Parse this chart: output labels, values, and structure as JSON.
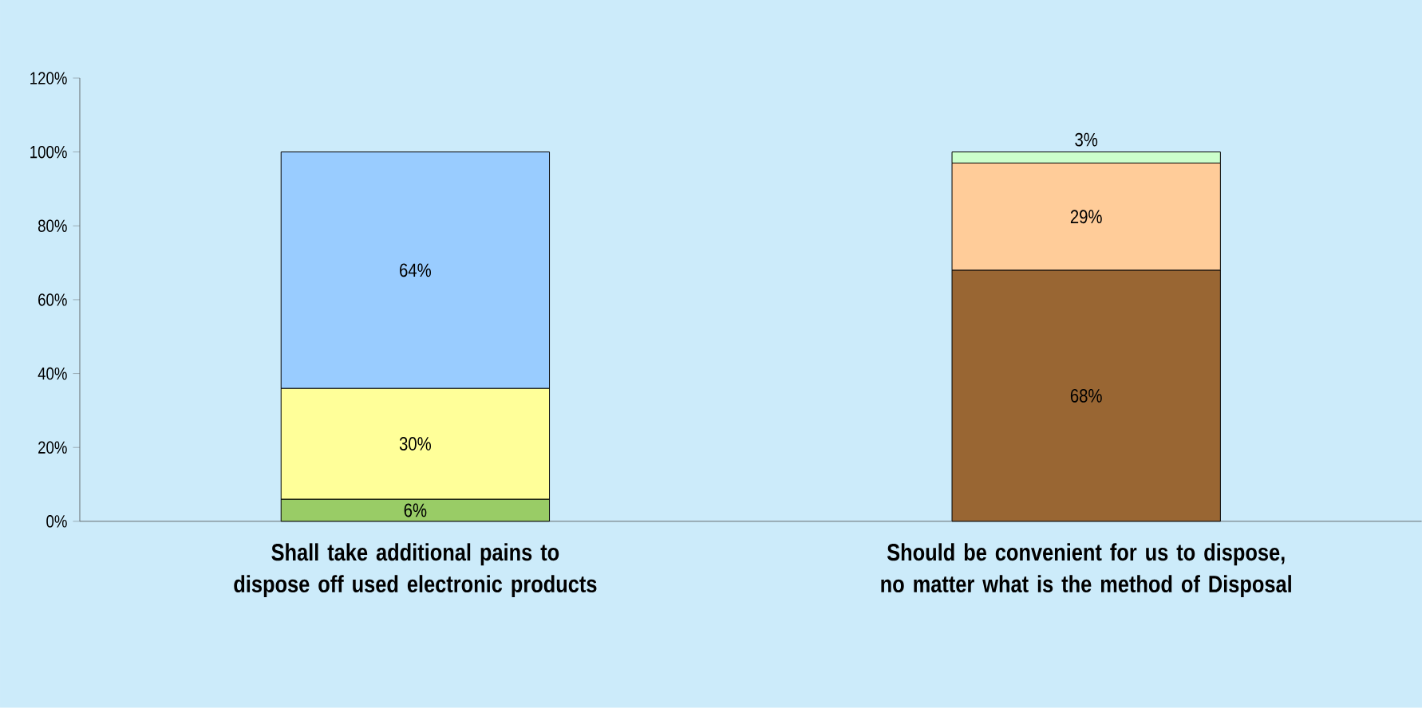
{
  "chart_data": {
    "type": "bar",
    "stacked": true,
    "categories": [
      "Shall take additional pains to dispose off used electronic products",
      "Should be convenient for us to dispose, no matter what is the method of Disposal"
    ],
    "series": [
      {
        "colors": [
          "#99cc66",
          "#996633"
        ],
        "values": [
          6,
          68
        ],
        "value_labels": [
          "6%",
          "68%"
        ]
      },
      {
        "colors": [
          "#ffff99",
          "#ffcc99"
        ],
        "values": [
          30,
          29
        ],
        "value_labels": [
          "30%",
          "29%"
        ]
      },
      {
        "colors": [
          "#99ccff",
          "#ccffcc"
        ],
        "values": [
          64,
          3
        ],
        "value_labels": [
          "64%",
          "3%"
        ]
      }
    ],
    "ylim": [
      0,
      120
    ],
    "yticks": [
      {
        "value": 0,
        "label": "0%"
      },
      {
        "value": 20,
        "label": "20%"
      },
      {
        "value": 40,
        "label": "40%"
      },
      {
        "value": 60,
        "label": "60%"
      },
      {
        "value": 80,
        "label": "80%"
      },
      {
        "value": 100,
        "label": "100%"
      },
      {
        "value": 120,
        "label": "120%"
      }
    ],
    "grid": false
  }
}
